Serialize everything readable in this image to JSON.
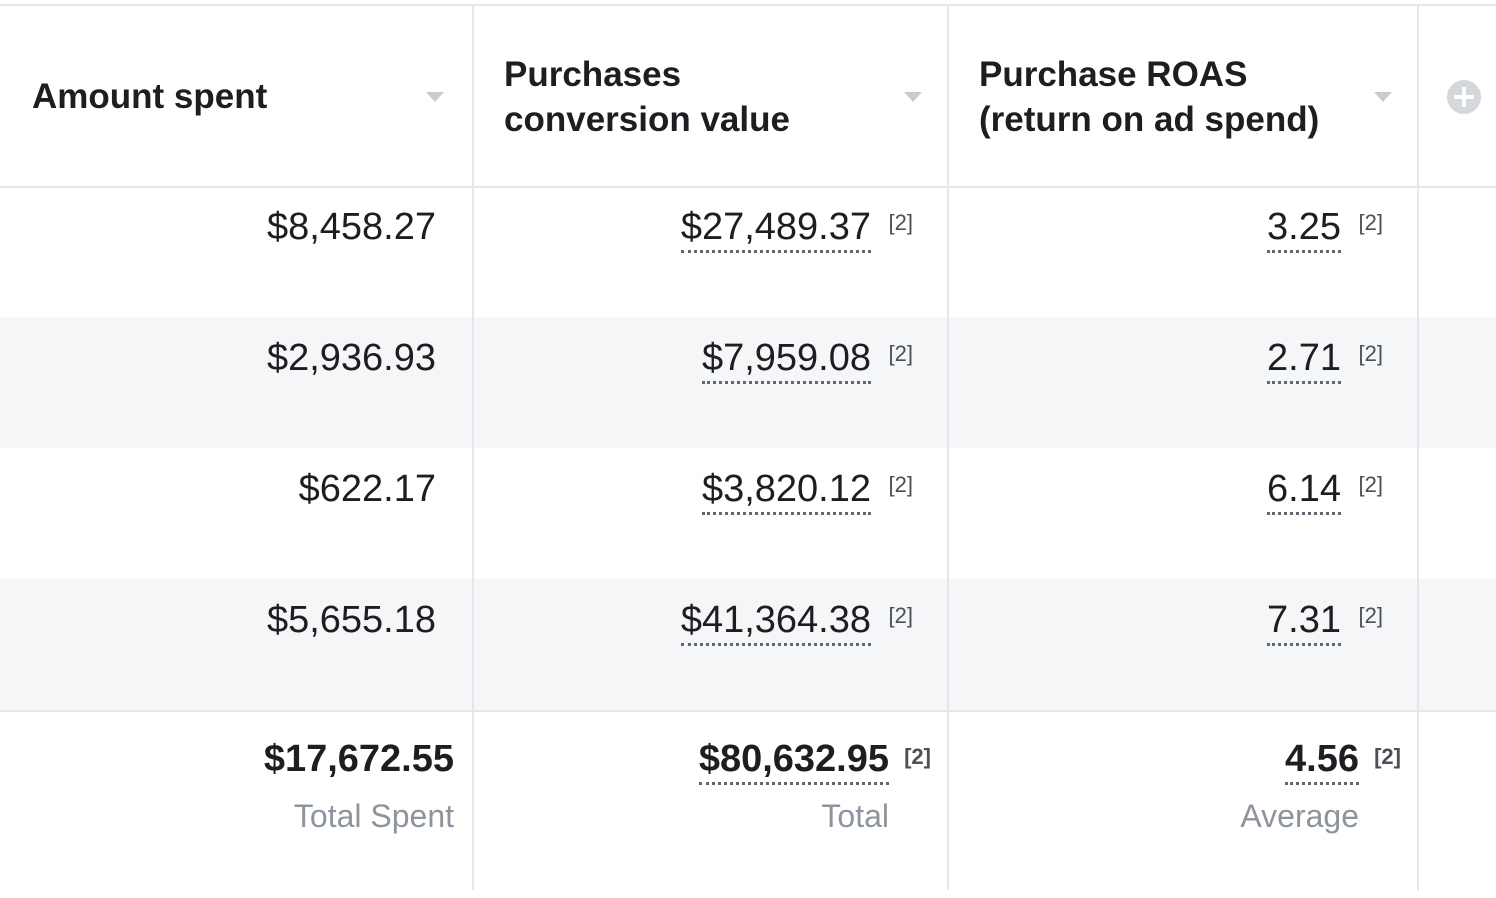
{
  "columns": [
    {
      "label": "Amount spent"
    },
    {
      "label": "Purchases\nconversion value"
    },
    {
      "label": "Purchase ROAS\n(return on ad spend)"
    }
  ],
  "footnote_marker": "[2]",
  "rows": [
    {
      "amount_spent": "$8,458.27",
      "conversion_value": "$27,489.37",
      "roas": "3.25"
    },
    {
      "amount_spent": "$2,936.93",
      "conversion_value": "$7,959.08",
      "roas": "2.71"
    },
    {
      "amount_spent": "$622.17",
      "conversion_value": "$3,820.12",
      "roas": "6.14"
    },
    {
      "amount_spent": "$5,655.18",
      "conversion_value": "$41,364.38",
      "roas": "7.31"
    }
  ],
  "totals": {
    "amount_spent": "$17,672.55",
    "amount_spent_label": "Total Spent",
    "conversion_value": "$80,632.95",
    "conversion_value_label": "Total",
    "roas": "4.56",
    "roas_label": "Average"
  },
  "icons": {
    "sort": "chevron-down-icon",
    "add_column": "plus-circle-icon"
  }
}
